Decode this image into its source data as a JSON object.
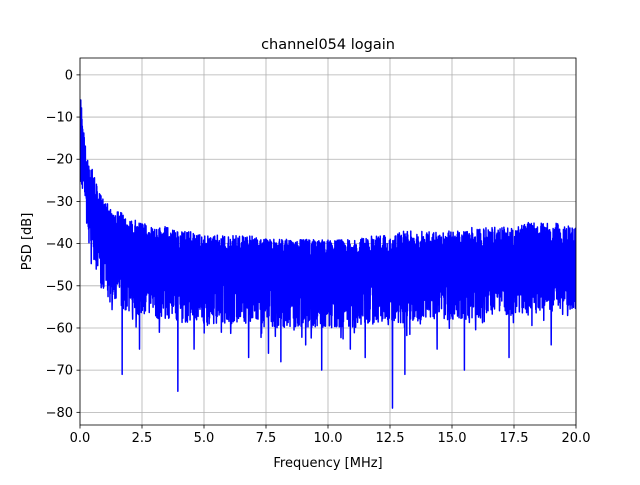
{
  "chart_data": {
    "type": "line",
    "title": "channel054 logain",
    "xlabel": "Frequency [MHz]",
    "ylabel": "PSD [dB]",
    "xlim": [
      0,
      20
    ],
    "ylim": [
      -83,
      4
    ],
    "grid": true,
    "x_ticks": [
      0,
      2.5,
      5,
      7.5,
      10,
      12.5,
      15,
      17.5,
      20
    ],
    "x_tick_labels": [
      "0.0",
      "2.5",
      "5.0",
      "7.5",
      "10.0",
      "12.5",
      "15.0",
      "17.5",
      "20.0"
    ],
    "y_ticks": [
      0,
      -10,
      -20,
      -30,
      -40,
      -50,
      -60,
      -70,
      -80
    ],
    "y_tick_labels": [
      "0",
      "−10",
      "−20",
      "−30",
      "−40",
      "−50",
      "−60",
      "−70",
      "−80"
    ],
    "series_color": "#0000ff",
    "series": [
      {
        "x": [
          0,
          0.05,
          0.1,
          0.15,
          0.2,
          0.3,
          0.4,
          0.5,
          0.6,
          0.7,
          0.8,
          1.0,
          1.2,
          1.5,
          1.8,
          2.0,
          2.5,
          3.0,
          3.5,
          4.0,
          4.5,
          5.0,
          6.0,
          7.0,
          8.0,
          9.0,
          10.0,
          11.0,
          12.0,
          12.5,
          13.0,
          14.0,
          15.0,
          16.0,
          17.0,
          18.0,
          19.0,
          20.0
        ],
        "upper": [
          -4,
          -6,
          -10,
          -13,
          -16,
          -20,
          -21,
          -22,
          -24,
          -27,
          -28,
          -30,
          -31,
          -32,
          -33,
          -34,
          -35,
          -36,
          -36,
          -37,
          -37,
          -38,
          -38,
          -38,
          -39,
          -39,
          -39,
          -39,
          -38,
          -38,
          -37,
          -37,
          -37,
          -36,
          -36,
          -35,
          -35,
          -36
        ],
        "center": [
          -10,
          -13,
          -16,
          -20,
          -24,
          -28,
          -30,
          -32,
          -34,
          -35,
          -36,
          -38,
          -39,
          -40,
          -41,
          -42,
          -42,
          -43,
          -43,
          -44,
          -44,
          -45,
          -45,
          -45,
          -46,
          -46,
          -46,
          -46,
          -45,
          -45,
          -45,
          -45,
          -44,
          -44,
          -44,
          -44,
          -43,
          -44
        ],
        "lower": [
          -25,
          -27,
          -28,
          -30,
          -32,
          -38,
          -40,
          -44,
          -46,
          -48,
          -50,
          -52,
          -54,
          -55,
          -56,
          -57,
          -57,
          -58,
          -58,
          -59,
          -59,
          -59,
          -59,
          -59,
          -60,
          -60,
          -60,
          -60,
          -59,
          -59,
          -59,
          -58,
          -58,
          -58,
          -57,
          -57,
          -56,
          -56
        ],
        "dips": [
          {
            "x": 1.7,
            "y": -71
          },
          {
            "x": 2.4,
            "y": -65
          },
          {
            "x": 3.2,
            "y": -61
          },
          {
            "x": 3.95,
            "y": -75
          },
          {
            "x": 4.6,
            "y": -65
          },
          {
            "x": 5.7,
            "y": -61
          },
          {
            "x": 6.8,
            "y": -67
          },
          {
            "x": 7.6,
            "y": -66
          },
          {
            "x": 8.1,
            "y": -68
          },
          {
            "x": 9.1,
            "y": -64
          },
          {
            "x": 9.75,
            "y": -70
          },
          {
            "x": 10.9,
            "y": -65
          },
          {
            "x": 11.5,
            "y": -67
          },
          {
            "x": 12.6,
            "y": -79
          },
          {
            "x": 13.1,
            "y": -71
          },
          {
            "x": 14.4,
            "y": -65
          },
          {
            "x": 15.5,
            "y": -70
          },
          {
            "x": 17.3,
            "y": -67
          },
          {
            "x": 19.0,
            "y": -64
          }
        ]
      }
    ]
  }
}
